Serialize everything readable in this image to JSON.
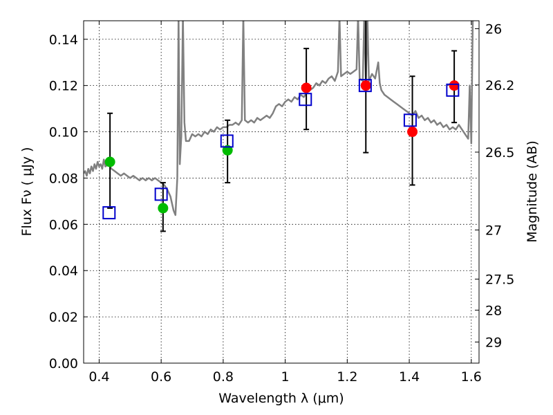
{
  "chart_data": {
    "type": "scatter",
    "xlabel": "Wavelength  λ (μm)",
    "ylabel": "Flux  Fν  ( μJy )",
    "y2label": "Magnitude (AB)",
    "xlim": [
      0.35,
      1.625
    ],
    "ylim": [
      0.0,
      0.148
    ],
    "grid": true,
    "x_ticks": [
      "0.4",
      "0.6",
      "0.8",
      "1",
      "1.2",
      "1.4",
      "1.6"
    ],
    "x_tick_values": [
      0.4,
      0.6,
      0.8,
      1.0,
      1.2,
      1.4,
      1.6
    ],
    "y_ticks": [
      "0.00",
      "0.02",
      "0.04",
      "0.06",
      "0.08",
      "0.10",
      "0.12",
      "0.14"
    ],
    "y_tick_values": [
      0.0,
      0.02,
      0.04,
      0.06,
      0.08,
      0.1,
      0.12,
      0.14
    ],
    "y2_ticks": [
      {
        "label": "26",
        "mag": 26.0
      },
      {
        "label": "26.2",
        "mag": 26.2
      },
      {
        "label": "26.5",
        "mag": 26.5
      },
      {
        "label": "27",
        "mag": 27.0
      },
      {
        "label": "27.5",
        "mag": 27.5
      },
      {
        "label": "28",
        "mag": 28.0
      },
      {
        "label": "29",
        "mag": 29.0
      }
    ],
    "series": [
      {
        "marker": "circle",
        "color": "#00bb00",
        "points": [
          {
            "x": 0.435,
            "y": 0.087,
            "ylo": 0.067,
            "yhi": 0.108
          },
          {
            "x": 0.606,
            "y": 0.067,
            "ylo": 0.057,
            "yhi": 0.078
          },
          {
            "x": 0.814,
            "y": 0.092,
            "ylo": 0.078,
            "yhi": 0.105
          }
        ]
      },
      {
        "marker": "circle",
        "color": "#ff0000",
        "points": [
          {
            "x": 1.068,
            "y": 0.119,
            "ylo": 0.101,
            "yhi": 0.136
          },
          {
            "x": 1.26,
            "y": 0.12,
            "ylo": 0.091,
            "yhi": 0.15
          },
          {
            "x": 1.41,
            "y": 0.1,
            "ylo": 0.077,
            "yhi": 0.124
          },
          {
            "x": 1.545,
            "y": 0.12,
            "ylo": 0.104,
            "yhi": 0.135
          }
        ]
      },
      {
        "marker": "square-open",
        "color": "#0000cc",
        "points": [
          {
            "x": 0.432,
            "y": 0.065
          },
          {
            "x": 0.6,
            "y": 0.073
          },
          {
            "x": 0.812,
            "y": 0.096
          },
          {
            "x": 1.065,
            "y": 0.114
          },
          {
            "x": 1.258,
            "y": 0.12
          },
          {
            "x": 1.403,
            "y": 0.105
          },
          {
            "x": 1.54,
            "y": 0.118
          }
        ]
      },
      {
        "marker": "line",
        "color": "#808080",
        "points": [
          [
            0.35,
            0.082
          ],
          [
            0.355,
            0.083
          ],
          [
            0.36,
            0.081
          ],
          [
            0.365,
            0.084
          ],
          [
            0.37,
            0.082
          ],
          [
            0.375,
            0.085
          ],
          [
            0.38,
            0.083
          ],
          [
            0.385,
            0.086
          ],
          [
            0.39,
            0.084
          ],
          [
            0.395,
            0.087
          ],
          [
            0.4,
            0.085
          ],
          [
            0.405,
            0.086
          ],
          [
            0.41,
            0.084
          ],
          [
            0.415,
            0.088
          ],
          [
            0.42,
            0.085
          ],
          [
            0.43,
            0.086
          ],
          [
            0.44,
            0.084
          ],
          [
            0.45,
            0.083
          ],
          [
            0.46,
            0.082
          ],
          [
            0.47,
            0.081
          ],
          [
            0.48,
            0.082
          ],
          [
            0.49,
            0.081
          ],
          [
            0.5,
            0.08
          ],
          [
            0.51,
            0.081
          ],
          [
            0.52,
            0.08
          ],
          [
            0.53,
            0.079
          ],
          [
            0.54,
            0.08
          ],
          [
            0.55,
            0.079
          ],
          [
            0.56,
            0.08
          ],
          [
            0.57,
            0.079
          ],
          [
            0.58,
            0.08
          ],
          [
            0.59,
            0.079
          ],
          [
            0.6,
            0.078
          ],
          [
            0.61,
            0.077
          ],
          [
            0.62,
            0.075
          ],
          [
            0.63,
            0.072
          ],
          [
            0.64,
            0.066
          ],
          [
            0.646,
            0.064
          ],
          [
            0.652,
            0.08
          ],
          [
            0.656,
            0.15
          ],
          [
            0.66,
            0.086
          ],
          [
            0.665,
            0.098
          ],
          [
            0.67,
            0.15
          ],
          [
            0.675,
            0.104
          ],
          [
            0.68,
            0.096
          ],
          [
            0.69,
            0.096
          ],
          [
            0.7,
            0.099
          ],
          [
            0.71,
            0.098
          ],
          [
            0.72,
            0.099
          ],
          [
            0.73,
            0.098
          ],
          [
            0.74,
            0.1
          ],
          [
            0.75,
            0.099
          ],
          [
            0.76,
            0.101
          ],
          [
            0.77,
            0.1
          ],
          [
            0.78,
            0.102
          ],
          [
            0.79,
            0.101
          ],
          [
            0.8,
            0.102
          ],
          [
            0.81,
            0.102
          ],
          [
            0.82,
            0.103
          ],
          [
            0.83,
            0.103
          ],
          [
            0.84,
            0.104
          ],
          [
            0.85,
            0.103
          ],
          [
            0.86,
            0.105
          ],
          [
            0.865,
            0.15
          ],
          [
            0.87,
            0.105
          ],
          [
            0.88,
            0.104
          ],
          [
            0.89,
            0.105
          ],
          [
            0.9,
            0.104
          ],
          [
            0.91,
            0.106
          ],
          [
            0.92,
            0.105
          ],
          [
            0.93,
            0.106
          ],
          [
            0.94,
            0.107
          ],
          [
            0.95,
            0.106
          ],
          [
            0.96,
            0.108
          ],
          [
            0.97,
            0.111
          ],
          [
            0.98,
            0.112
          ],
          [
            0.99,
            0.111
          ],
          [
            1.0,
            0.113
          ],
          [
            1.01,
            0.114
          ],
          [
            1.02,
            0.113
          ],
          [
            1.03,
            0.115
          ],
          [
            1.04,
            0.114
          ],
          [
            1.05,
            0.116
          ],
          [
            1.06,
            0.115
          ],
          [
            1.07,
            0.117
          ],
          [
            1.08,
            0.118
          ],
          [
            1.09,
            0.119
          ],
          [
            1.1,
            0.121
          ],
          [
            1.11,
            0.12
          ],
          [
            1.12,
            0.122
          ],
          [
            1.13,
            0.121
          ],
          [
            1.14,
            0.123
          ],
          [
            1.15,
            0.124
          ],
          [
            1.16,
            0.122
          ],
          [
            1.17,
            0.126
          ],
          [
            1.175,
            0.15
          ],
          [
            1.18,
            0.124
          ],
          [
            1.19,
            0.125
          ],
          [
            1.2,
            0.126
          ],
          [
            1.21,
            0.125
          ],
          [
            1.22,
            0.126
          ],
          [
            1.23,
            0.127
          ],
          [
            1.235,
            0.15
          ],
          [
            1.24,
            0.123
          ],
          [
            1.25,
            0.122
          ],
          [
            1.255,
            0.15
          ],
          [
            1.26,
            0.121
          ],
          [
            1.265,
            0.15
          ],
          [
            1.27,
            0.122
          ],
          [
            1.28,
            0.125
          ],
          [
            1.29,
            0.123
          ],
          [
            1.3,
            0.13
          ],
          [
            1.305,
            0.121
          ],
          [
            1.31,
            0.118
          ],
          [
            1.32,
            0.116
          ],
          [
            1.33,
            0.115
          ],
          [
            1.34,
            0.114
          ],
          [
            1.35,
            0.113
          ],
          [
            1.36,
            0.112
          ],
          [
            1.37,
            0.111
          ],
          [
            1.38,
            0.11
          ],
          [
            1.39,
            0.109
          ],
          [
            1.4,
            0.108
          ],
          [
            1.41,
            0.107
          ],
          [
            1.42,
            0.109
          ],
          [
            1.43,
            0.106
          ],
          [
            1.44,
            0.107
          ],
          [
            1.45,
            0.105
          ],
          [
            1.46,
            0.106
          ],
          [
            1.47,
            0.104
          ],
          [
            1.48,
            0.105
          ],
          [
            1.49,
            0.103
          ],
          [
            1.5,
            0.104
          ],
          [
            1.51,
            0.102
          ],
          [
            1.52,
            0.103
          ],
          [
            1.53,
            0.101
          ],
          [
            1.54,
            0.102
          ],
          [
            1.55,
            0.101
          ],
          [
            1.56,
            0.103
          ],
          [
            1.57,
            0.101
          ],
          [
            1.58,
            0.099
          ],
          [
            1.59,
            0.097
          ],
          [
            1.595,
            0.12
          ],
          [
            1.6,
            0.095
          ],
          [
            1.605,
            0.15
          ],
          [
            1.61,
            0.15
          ],
          [
            1.615,
            0.15
          ],
          [
            1.62,
            0.15
          ],
          [
            1.625,
            0.15
          ]
        ]
      }
    ]
  }
}
